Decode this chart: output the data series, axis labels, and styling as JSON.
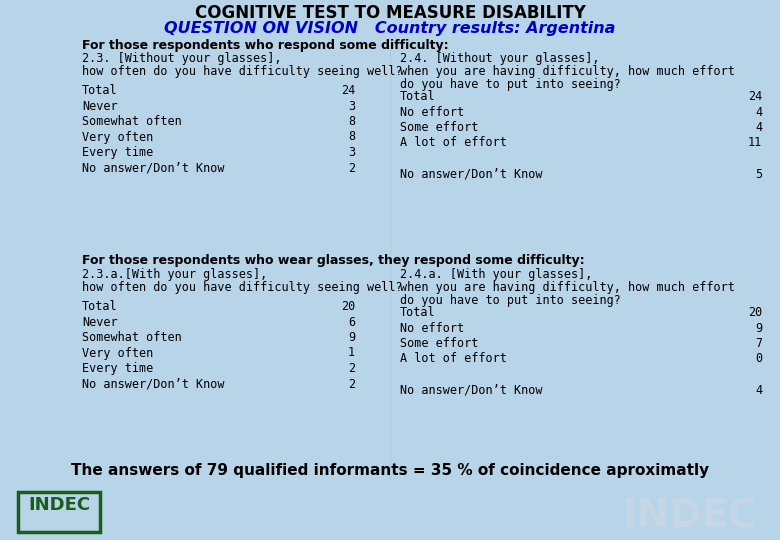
{
  "title1": "COGNITIVE TEST TO MEASURE DISABILITY",
  "title2": "QUESTION ON VISION   Country results: Argentina",
  "bg_color": "#b8d4e8",
  "title1_color": "#000000",
  "title2_color": "#0000cc",
  "section1_header": "For those respondents who respond some difficulty:",
  "section2_header": "For those respondents who wear glasses, they respond some difficulty:",
  "footer": "The answers of 79 qualified informants = 35 % of coincidence aproximatly",
  "col1_q1_lines": [
    "2.3. [Without your glasses],",
    "how often do you have difficulty seeing well?"
  ],
  "col2_q1_lines": [
    "2.4. [Without your glasses],",
    "when you are having difficulty, how much effort",
    "do you have to put into seeing?"
  ],
  "col1_q1_rows": [
    [
      "Total",
      "24"
    ],
    [
      "Never",
      "3"
    ],
    [
      "Somewhat often",
      "8"
    ],
    [
      "Very often",
      "8"
    ],
    [
      "Every time",
      "3"
    ],
    [
      "No answer/Don’t Know",
      "2"
    ]
  ],
  "col2_q1_rows": [
    [
      "Total",
      "24"
    ],
    [
      "No effort",
      "4"
    ],
    [
      "Some effort",
      "4"
    ],
    [
      "A lot of effort",
      "11"
    ],
    [
      "",
      ""
    ],
    [
      "No answer/Don’t Know",
      "5"
    ]
  ],
  "col1_q2_lines": [
    "2.3.a.[With your glasses],",
    "how often do you have difficulty seeing well?"
  ],
  "col2_q2_lines": [
    "2.4.a. [With your glasses],",
    "when you are having difficulty, how much effort",
    "do you have to put into seeing?"
  ],
  "col1_q2_rows": [
    [
      "Total",
      "20"
    ],
    [
      "Never",
      "6"
    ],
    [
      "Somewhat often",
      "9"
    ],
    [
      "Very often",
      "1"
    ],
    [
      "Every time",
      "2"
    ],
    [
      "No answer/Don’t Know",
      "2"
    ]
  ],
  "col2_q2_rows": [
    [
      "Total",
      "20"
    ],
    [
      "No effort",
      "9"
    ],
    [
      "Some effort",
      "7"
    ],
    [
      "A lot of effort",
      "0"
    ],
    [
      "",
      ""
    ],
    [
      "No answer/Don’t Know",
      "4"
    ]
  ],
  "indec_color": "#1a5c1a",
  "indec_watermark_color": "#c8d8e4"
}
